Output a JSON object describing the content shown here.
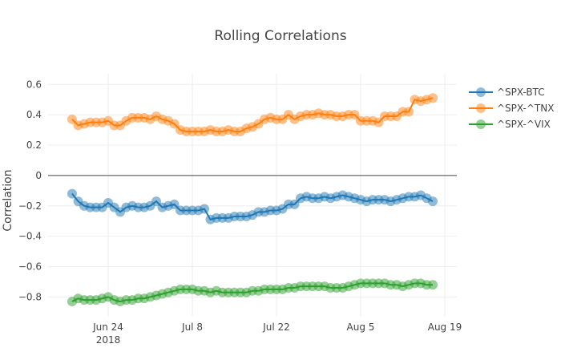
{
  "chart_data": {
    "type": "line",
    "title": "Rolling Correlations",
    "xlabel": "",
    "ylabel": "Correlation",
    "x_start": "2018-06-18",
    "x_end": "2018-08-17",
    "x_frequency": "daily",
    "xlim": [
      "2018-06-14",
      "2018-08-21"
    ],
    "ylim": [
      -0.93,
      0.67
    ],
    "x_ticks": [
      {
        "date": "2018-06-24",
        "label": "Jun 24",
        "sublabel": "2018"
      },
      {
        "date": "2018-07-08",
        "label": "Jul 8"
      },
      {
        "date": "2018-07-22",
        "label": "Jul 22"
      },
      {
        "date": "2018-08-05",
        "label": "Aug 5"
      },
      {
        "date": "2018-08-19",
        "label": "Aug 19"
      }
    ],
    "y_ticks": [
      0.6,
      0.4,
      0.2,
      0,
      -0.2,
      -0.4,
      -0.6,
      -0.8
    ],
    "y_tick_labels": [
      "0.6",
      "0.4",
      "0.2",
      "0",
      "−0.2",
      "−0.4",
      "−0.6",
      "−0.8"
    ],
    "grid": true,
    "zero_line": true,
    "legend_position": "top-right",
    "mode": "lines+markers",
    "series": [
      {
        "name": "^SPX-BTC",
        "color": "#1f77b4",
        "values": [
          -0.12,
          -0.17,
          -0.2,
          -0.21,
          -0.21,
          -0.21,
          -0.18,
          -0.21,
          -0.24,
          -0.21,
          -0.2,
          -0.21,
          -0.21,
          -0.2,
          -0.17,
          -0.21,
          -0.2,
          -0.19,
          -0.23,
          -0.23,
          -0.23,
          -0.23,
          -0.22,
          -0.29,
          -0.28,
          -0.28,
          -0.28,
          -0.27,
          -0.27,
          -0.27,
          -0.26,
          -0.24,
          -0.24,
          -0.23,
          -0.23,
          -0.22,
          -0.19,
          -0.19,
          -0.15,
          -0.14,
          -0.15,
          -0.15,
          -0.14,
          -0.15,
          -0.14,
          -0.13,
          -0.14,
          -0.15,
          -0.16,
          -0.17,
          -0.16,
          -0.16,
          -0.16,
          -0.17,
          -0.16,
          -0.15,
          -0.14,
          -0.14,
          -0.13,
          -0.15,
          -0.17
        ]
      },
      {
        "name": "^SPX-^TNX",
        "color": "#ff7f0e",
        "values": [
          0.37,
          0.33,
          0.34,
          0.35,
          0.35,
          0.35,
          0.36,
          0.33,
          0.33,
          0.36,
          0.38,
          0.38,
          0.38,
          0.37,
          0.39,
          0.37,
          0.36,
          0.34,
          0.3,
          0.29,
          0.29,
          0.29,
          0.29,
          0.3,
          0.29,
          0.29,
          0.3,
          0.29,
          0.29,
          0.31,
          0.32,
          0.34,
          0.37,
          0.38,
          0.37,
          0.37,
          0.4,
          0.37,
          0.39,
          0.4,
          0.4,
          0.41,
          0.4,
          0.4,
          0.39,
          0.39,
          0.4,
          0.4,
          0.36,
          0.36,
          0.36,
          0.35,
          0.39,
          0.39,
          0.39,
          0.42,
          0.42,
          0.5,
          0.49,
          0.5,
          0.51
        ]
      },
      {
        "name": "^SPX-^VIX",
        "color": "#2ca02c",
        "values": [
          -0.83,
          -0.81,
          -0.82,
          -0.82,
          -0.82,
          -0.81,
          -0.8,
          -0.82,
          -0.83,
          -0.82,
          -0.82,
          -0.81,
          -0.81,
          -0.8,
          -0.79,
          -0.78,
          -0.77,
          -0.76,
          -0.75,
          -0.75,
          -0.75,
          -0.76,
          -0.76,
          -0.77,
          -0.76,
          -0.77,
          -0.77,
          -0.77,
          -0.77,
          -0.77,
          -0.76,
          -0.76,
          -0.75,
          -0.75,
          -0.75,
          -0.75,
          -0.74,
          -0.74,
          -0.73,
          -0.73,
          -0.73,
          -0.73,
          -0.73,
          -0.74,
          -0.74,
          -0.74,
          -0.73,
          -0.72,
          -0.71,
          -0.71,
          -0.71,
          -0.71,
          -0.71,
          -0.72,
          -0.72,
          -0.73,
          -0.72,
          -0.71,
          -0.71,
          -0.72,
          -0.72
        ]
      }
    ]
  }
}
